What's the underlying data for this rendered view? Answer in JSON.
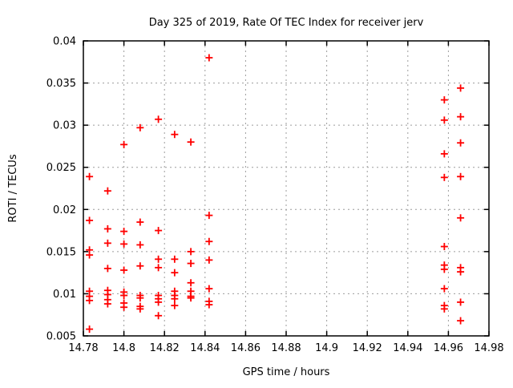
{
  "chart_data": {
    "type": "scatter",
    "title": "Day 325 of 2019, Rate Of TEC Index for receiver jerv",
    "xlabel": "GPS time / hours",
    "ylabel": "ROTI / TECUs",
    "xlim": [
      14.78,
      14.98
    ],
    "ylim": [
      0.005,
      0.04
    ],
    "xticks": [
      14.78,
      14.8,
      14.82,
      14.84,
      14.86,
      14.88,
      14.9,
      14.92,
      14.94,
      14.96,
      14.98
    ],
    "xtick_labels": [
      "14.78",
      "14.8",
      "14.82",
      "14.84",
      "14.86",
      "14.88",
      "14.9",
      "14.92",
      "14.94",
      "14.96",
      "14.98"
    ],
    "yticks": [
      0.005,
      0.01,
      0.015,
      0.02,
      0.025,
      0.03,
      0.035,
      0.04
    ],
    "ytick_labels": [
      "0.005",
      "0.01",
      "0.015",
      "0.02",
      "0.025",
      "0.03",
      "0.035",
      "0.04"
    ],
    "grid": true,
    "legend": "none",
    "marker": "plus",
    "marker_color": "#ff0000",
    "grid_color": "#9c9c9c",
    "border_color": "#000000",
    "points": [
      [
        14.783,
        0.0239
      ],
      [
        14.783,
        0.0187
      ],
      [
        14.783,
        0.0152
      ],
      [
        14.783,
        0.0146
      ],
      [
        14.783,
        0.0103
      ],
      [
        14.783,
        0.0097
      ],
      [
        14.783,
        0.0092
      ],
      [
        14.783,
        0.0058
      ],
      [
        14.792,
        0.0222
      ],
      [
        14.792,
        0.0177
      ],
      [
        14.792,
        0.016
      ],
      [
        14.792,
        0.013
      ],
      [
        14.792,
        0.0104
      ],
      [
        14.792,
        0.0099
      ],
      [
        14.792,
        0.0093
      ],
      [
        14.792,
        0.0088
      ],
      [
        14.8,
        0.0277
      ],
      [
        14.8,
        0.0174
      ],
      [
        14.8,
        0.0159
      ],
      [
        14.8,
        0.0128
      ],
      [
        14.8,
        0.0102
      ],
      [
        14.8,
        0.0098
      ],
      [
        14.8,
        0.0089
      ],
      [
        14.8,
        0.0084
      ],
      [
        14.808,
        0.0297
      ],
      [
        14.808,
        0.0185
      ],
      [
        14.808,
        0.0158
      ],
      [
        14.808,
        0.0133
      ],
      [
        14.808,
        0.0098
      ],
      [
        14.808,
        0.0095
      ],
      [
        14.808,
        0.0085
      ],
      [
        14.808,
        0.0082
      ],
      [
        14.817,
        0.0307
      ],
      [
        14.817,
        0.0175
      ],
      [
        14.817,
        0.0141
      ],
      [
        14.817,
        0.0131
      ],
      [
        14.817,
        0.0098
      ],
      [
        14.817,
        0.0094
      ],
      [
        14.817,
        0.009
      ],
      [
        14.817,
        0.0074
      ],
      [
        14.825,
        0.0289
      ],
      [
        14.825,
        0.0141
      ],
      [
        14.825,
        0.0125
      ],
      [
        14.825,
        0.0103
      ],
      [
        14.825,
        0.0098
      ],
      [
        14.825,
        0.0094
      ],
      [
        14.825,
        0.0086
      ],
      [
        14.833,
        0.028
      ],
      [
        14.833,
        0.015
      ],
      [
        14.833,
        0.0136
      ],
      [
        14.833,
        0.0113
      ],
      [
        14.833,
        0.0103
      ],
      [
        14.833,
        0.0097
      ],
      [
        14.833,
        0.0095
      ],
      [
        14.842,
        0.038
      ],
      [
        14.842,
        0.0193
      ],
      [
        14.842,
        0.0162
      ],
      [
        14.842,
        0.014
      ],
      [
        14.842,
        0.0106
      ],
      [
        14.842,
        0.0091
      ],
      [
        14.842,
        0.0087
      ],
      [
        14.958,
        0.033
      ],
      [
        14.958,
        0.0306
      ],
      [
        14.958,
        0.0266
      ],
      [
        14.958,
        0.0238
      ],
      [
        14.958,
        0.0156
      ],
      [
        14.958,
        0.0134
      ],
      [
        14.958,
        0.0129
      ],
      [
        14.958,
        0.0106
      ],
      [
        14.958,
        0.0086
      ],
      [
        14.958,
        0.0082
      ],
      [
        14.966,
        0.0344
      ],
      [
        14.966,
        0.031
      ],
      [
        14.966,
        0.0279
      ],
      [
        14.966,
        0.0239
      ],
      [
        14.966,
        0.019
      ],
      [
        14.966,
        0.0131
      ],
      [
        14.966,
        0.0126
      ],
      [
        14.966,
        0.009
      ],
      [
        14.966,
        0.0068
      ]
    ]
  }
}
